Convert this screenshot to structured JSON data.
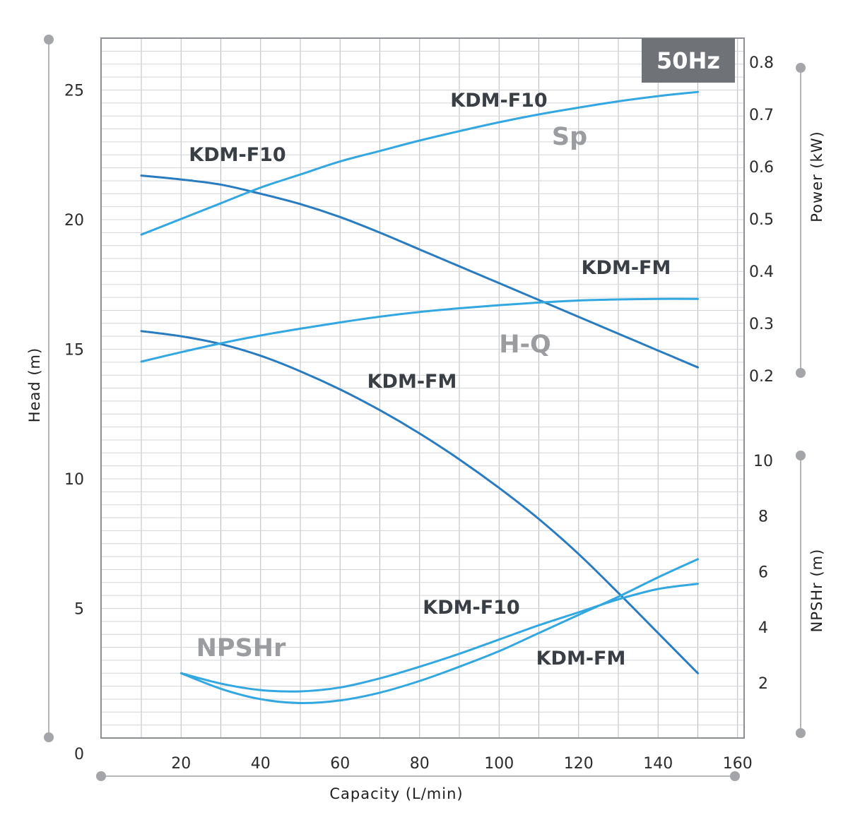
{
  "chart_data": {
    "type": "line",
    "badge": "50Hz",
    "x_axis": {
      "label": "Capacity  (L/min)",
      "ticks": [
        "0",
        "20",
        "40",
        "60",
        "80",
        "100",
        "120",
        "140",
        "160"
      ],
      "range": [
        0,
        160
      ]
    },
    "y_left": {
      "label": "Head  (m)",
      "ticks": [
        "5",
        "10",
        "15",
        "20",
        "25"
      ],
      "range": [
        0,
        27
      ]
    },
    "y_power": {
      "label": "Power  (kW)",
      "ticks": [
        "0.2",
        "0.3",
        "0.4",
        "0.5",
        "0.6",
        "0.7",
        "0.8"
      ],
      "range": [
        0.2,
        0.8
      ]
    },
    "y_npshr": {
      "label": "NPSHr  (m)",
      "ticks": [
        "2",
        "4",
        "6",
        "8",
        "10"
      ]
    },
    "group_labels": {
      "sp": "Sp",
      "hq": "H-Q",
      "npshr": "NPSHr"
    },
    "grid": true,
    "series": [
      {
        "name": "KDM-F10",
        "group": "H-Q",
        "axis": "head",
        "color": "#2a7cc0",
        "x": [
          10,
          20,
          30,
          40,
          50,
          60,
          70,
          80,
          90,
          100,
          110,
          120,
          130,
          140,
          150
        ],
        "y": [
          21.7,
          21.55,
          21.35,
          21.0,
          20.6,
          20.1,
          19.5,
          18.85,
          18.2,
          17.55,
          16.9,
          16.25,
          15.6,
          14.95,
          14.3
        ]
      },
      {
        "name": "KDM-FM",
        "group": "H-Q",
        "axis": "head",
        "color": "#2a7cc0",
        "x": [
          10,
          20,
          30,
          40,
          50,
          60,
          70,
          80,
          90,
          100,
          110,
          120,
          130,
          140,
          150
        ],
        "y": [
          15.7,
          15.5,
          15.2,
          14.75,
          14.15,
          13.45,
          12.65,
          11.75,
          10.75,
          9.65,
          8.45,
          7.1,
          5.6,
          4.05,
          2.5
        ]
      },
      {
        "name": "KDM-F10",
        "group": "Sp",
        "axis": "power",
        "color": "#32a7e0",
        "x": [
          10,
          20,
          30,
          40,
          50,
          60,
          70,
          80,
          90,
          100,
          110,
          120,
          130,
          140,
          150
        ],
        "y": [
          0.47,
          0.5,
          0.53,
          0.56,
          0.585,
          0.61,
          0.63,
          0.65,
          0.668,
          0.685,
          0.7,
          0.713,
          0.725,
          0.735,
          0.743
        ]
      },
      {
        "name": "KDM-FM",
        "group": "Sp",
        "axis": "power",
        "color": "#32a7e0",
        "x": [
          10,
          20,
          30,
          40,
          50,
          60,
          70,
          80,
          90,
          100,
          110,
          120,
          130,
          140,
          150
        ],
        "y": [
          0.227,
          0.245,
          0.262,
          0.277,
          0.29,
          0.302,
          0.313,
          0.322,
          0.329,
          0.335,
          0.34,
          0.344,
          0.346,
          0.347,
          0.347
        ]
      },
      {
        "name": "KDM-F10",
        "group": "NPSHr",
        "axis": "head",
        "color": "#32a7e0",
        "x": [
          20,
          30,
          40,
          50,
          60,
          70,
          80,
          90,
          100,
          110,
          120,
          130,
          140,
          150
        ],
        "y": [
          2.5,
          2.1,
          1.85,
          1.8,
          1.95,
          2.3,
          2.75,
          3.25,
          3.8,
          4.35,
          4.85,
          5.35,
          5.75,
          5.95
        ]
      },
      {
        "name": "KDM-FM",
        "group": "NPSHr",
        "axis": "head",
        "color": "#32a7e0",
        "x": [
          20,
          30,
          40,
          50,
          60,
          70,
          80,
          90,
          100,
          110,
          120,
          130,
          140,
          150
        ],
        "y": [
          2.5,
          1.9,
          1.5,
          1.35,
          1.45,
          1.75,
          2.2,
          2.75,
          3.35,
          4.05,
          4.75,
          5.45,
          6.2,
          6.9
        ]
      }
    ],
    "curve_labels": {
      "hq_f10": "KDM-F10",
      "hq_fm": "KDM-FM",
      "sp_f10": "KDM-F10",
      "sp_fm": "KDM-FM",
      "np_f10": "KDM-F10",
      "np_fm": "KDM-FM"
    }
  }
}
